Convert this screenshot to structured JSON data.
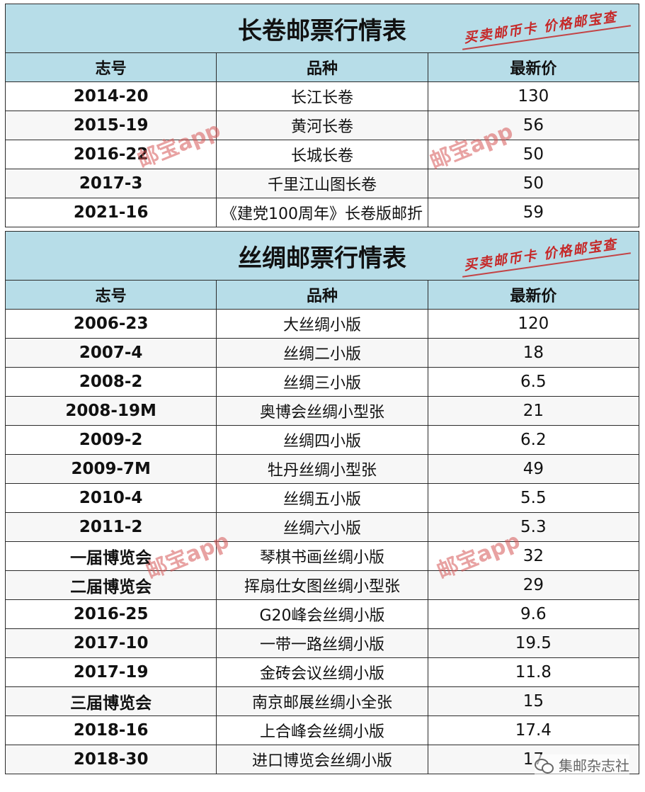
{
  "tables": [
    {
      "title": "长卷邮票行情表",
      "brand": "买卖邮币卡 价格邮宝查",
      "headers": [
        "志号",
        "品种",
        "最新价"
      ],
      "rows": [
        [
          "2014-20",
          "长江长卷",
          "130"
        ],
        [
          "2015-19",
          "黄河长卷",
          "56"
        ],
        [
          "2016-22",
          "长城长卷",
          "50"
        ],
        [
          "2017-3",
          "千里江山图长卷",
          "50"
        ],
        [
          "2021-16",
          "《建党100周年》长卷版邮折",
          "59"
        ]
      ]
    },
    {
      "title": "丝绸邮票行情表",
      "brand": "买卖邮币卡 价格邮宝查",
      "headers": [
        "志号",
        "品种",
        "最新价"
      ],
      "rows": [
        [
          "2006-23",
          "大丝绸小版",
          "120"
        ],
        [
          "2007-4",
          "丝绸二小版",
          "18"
        ],
        [
          "2008-2",
          "丝绸三小版",
          "6.5"
        ],
        [
          "2008-19M",
          "奥博会丝绸小型张",
          "21"
        ],
        [
          "2009-2",
          "丝绸四小版",
          "6.2"
        ],
        [
          "2009-7M",
          "牡丹丝绸小型张",
          "49"
        ],
        [
          "2010-4",
          "丝绸五小版",
          "5.5"
        ],
        [
          "2011-2",
          "丝绸六小版",
          "5.3"
        ],
        [
          "一届博览会",
          "琴棋书画丝绸小版",
          "32"
        ],
        [
          "二届博览会",
          "挥扇仕女图丝绸小型张",
          "29"
        ],
        [
          "2016-25",
          "G20峰会丝绸小版",
          "9.6"
        ],
        [
          "2017-10",
          "一带一路丝绸小版",
          "19.5"
        ],
        [
          "2017-19",
          "金砖会议丝绸小版",
          "11.8"
        ],
        [
          "三届博览会",
          "南京邮展丝绸小全张",
          "15"
        ],
        [
          "2018-16",
          "上合峰会丝绸小版",
          "17.4"
        ],
        [
          "2018-30",
          "进口博览会丝绸小版",
          "17"
        ]
      ]
    }
  ],
  "watermark": "邮宝app",
  "footer": "集邮杂志社"
}
